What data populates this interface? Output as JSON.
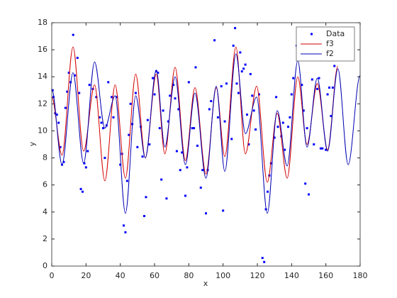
{
  "chart_data": {
    "type": "line",
    "xlabel": "x",
    "ylabel": "y",
    "xlim": [
      0,
      180
    ],
    "ylim": [
      0,
      18
    ],
    "xticks": [
      0,
      20,
      40,
      60,
      80,
      100,
      120,
      140,
      160,
      180
    ],
    "yticks": [
      0,
      2,
      4,
      6,
      8,
      10,
      12,
      14,
      16,
      18
    ],
    "grid": false,
    "legend": "northeast",
    "x": [
      0,
      6,
      12.4,
      18.6,
      25,
      31,
      37,
      43,
      49,
      54.6,
      61,
      66,
      72,
      78,
      83.6,
      90,
      96,
      101,
      107.5,
      113,
      119.6,
      125.8,
      131.6,
      137.4,
      143.6,
      149,
      155,
      161,
      167,
      173,
      180
    ],
    "series": [
      {
        "name": "Data",
        "type": "scatter",
        "color": "#0000ff",
        "x": [
          0.5,
          1,
          2,
          3,
          4,
          5,
          6,
          7,
          8,
          9,
          10,
          11,
          12.5,
          13.5,
          15,
          16,
          17,
          18,
          19,
          20,
          21,
          22,
          24,
          26,
          28,
          29,
          30,
          31,
          32,
          33,
          35,
          36,
          38,
          40,
          41,
          42,
          43,
          44,
          45,
          46,
          47,
          49,
          50,
          52,
          53,
          54,
          55,
          56,
          57,
          59,
          60,
          61,
          62,
          63,
          64,
          65,
          67,
          68,
          69,
          71,
          72,
          73,
          74,
          75,
          76,
          78,
          79,
          80,
          82,
          83,
          84,
          85,
          87,
          88,
          90,
          91,
          92,
          93,
          95,
          97,
          99,
          100,
          101,
          102,
          105,
          106,
          107,
          108,
          109,
          110,
          111,
          112,
          113,
          114,
          115,
          116,
          117,
          118,
          119,
          121,
          123,
          124,
          125,
          126,
          127,
          128,
          130,
          131,
          132,
          134,
          135,
          136,
          138,
          139,
          140,
          141,
          143,
          144,
          145,
          146,
          147,
          148,
          149,
          150,
          152,
          153,
          155,
          156,
          157,
          158,
          160,
          161,
          162,
          163,
          164,
          165
        ],
        "values": [
          13,
          12.5,
          11.3,
          11.2,
          10.6,
          8.8,
          7.5,
          7.7,
          11.7,
          12.9,
          14.3,
          13.6,
          17.1,
          14.1,
          15.4,
          12.8,
          5.7,
          5.5,
          7.6,
          7.3,
          8.5,
          13.4,
          13.1,
          12.5,
          11,
          10.6,
          10.2,
          8,
          10.4,
          13.6,
          12.5,
          11,
          12.5,
          7.5,
          8.3,
          3,
          2.5,
          6.3,
          9.7,
          12,
          10.5,
          12.8,
          8.8,
          10.3,
          8.1,
          3.7,
          5.1,
          10.8,
          9,
          13.9,
          12.7,
          14.4,
          14.3,
          10.2,
          6.4,
          11.5,
          5,
          10.7,
          12.6,
          13.4,
          12.4,
          8.5,
          11.6,
          7.1,
          8.4,
          5.2,
          7.3,
          13.6,
          10.2,
          10.2,
          14.7,
          8.9,
          5.8,
          7.1,
          3.9,
          7.1,
          11.6,
          12.2,
          16.7,
          11,
          13.3,
          4.1,
          10.7,
          13.5,
          9.4,
          16.3,
          17.6,
          13.5,
          12.8,
          15.8,
          14.4,
          14.6,
          14.9,
          11.2,
          9,
          14.2,
          12.6,
          11.5,
          10.1,
          12.7,
          0.6,
          0.3,
          4.2,
          5.5,
          6.7,
          7.6,
          9.5,
          12.5,
          10.3,
          9.6,
          10.6,
          8.6,
          10.3,
          11,
          12.7,
          13.9,
          16.3,
          16.8,
          16.5,
          13.4,
          11.5,
          6.1,
          10.2,
          5.3,
          13.8,
          9,
          13.1,
          13.9,
          8.7,
          8.7,
          8.6,
          12.7,
          13.2,
          11.1,
          13.2,
          14.8
        ]
      },
      {
        "name": "f3",
        "type": "line",
        "color": "#d40000",
        "values": [
          12.5,
          8.2,
          16.2,
          8.5,
          13.4,
          6.3,
          13.4,
          6.5,
          14.2,
          8.0,
          14.2,
          8.3,
          14.7,
          7.8,
          13.2,
          6.8,
          13.2,
          8.1,
          16.2,
          8.3,
          13.3,
          6.2,
          11.3,
          6.5,
          14.0,
          9.0,
          13.5,
          8.6,
          14.8,
          null,
          null
        ]
      },
      {
        "name": "f2",
        "type": "line",
        "color": "#0000b4",
        "values": [
          13.1,
          7.5,
          14.3,
          7.6,
          15.1,
          10.2,
          12.6,
          3.9,
          12.6,
          8.0,
          14.5,
          8.8,
          14.0,
          7.5,
          12.8,
          6.5,
          13.3,
          7.0,
          15.7,
          9.8,
          12.5,
          3.9,
          11.5,
          7.4,
          15.2,
          8.8,
          13.9,
          8.5,
          14.6,
          7.5,
          14.1
        ]
      }
    ]
  }
}
